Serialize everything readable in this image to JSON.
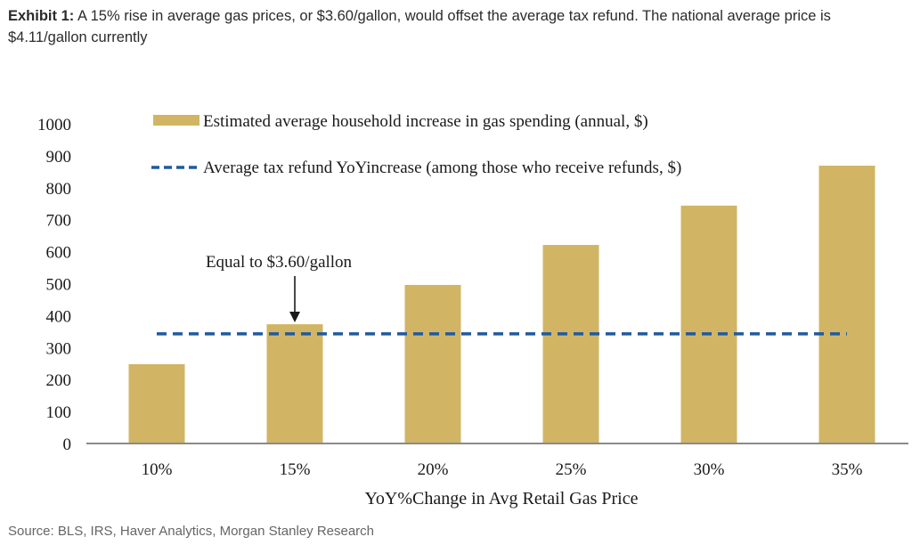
{
  "header": {
    "exhibit_label": "Exhibit 1:",
    "title": " A 15% rise in average gas prices, or $3.60/gallon, would offset the average tax refund. The national average price is $4.11/gallon currently"
  },
  "footer": {
    "source": "Source: BLS, IRS, Haver Analytics, Morgan Stanley Research"
  },
  "colors": {
    "bar": "#D1B565",
    "refund_line": "#1F5A9E",
    "axis": "#8a8a8a",
    "text": "#1a1a1a"
  },
  "chart_data": {
    "type": "bar",
    "title": "",
    "xlabel": "YoY%Change in Avg Retail Gas Price",
    "ylabel": "",
    "categories": [
      "10%",
      "15%",
      "20%",
      "25%",
      "30%",
      "35%"
    ],
    "ylim": [
      0,
      1000
    ],
    "yticks": [
      0,
      100,
      200,
      300,
      400,
      500,
      600,
      700,
      800,
      900,
      1000
    ],
    "grid": false,
    "legend_position": "top",
    "series": [
      {
        "name": "Estimated average household increase in gas spending (annual, $)",
        "kind": "bar",
        "values": [
          248,
          373,
          496,
          621,
          744,
          869
        ]
      },
      {
        "name": "Average tax refund YoYincrease (among those who receive refunds, $)",
        "kind": "dashed-line",
        "value": 343
      }
    ],
    "annotations": [
      {
        "text": "Equal to $3.60/gallon",
        "points_to": "15%",
        "arrow": "down"
      }
    ]
  }
}
